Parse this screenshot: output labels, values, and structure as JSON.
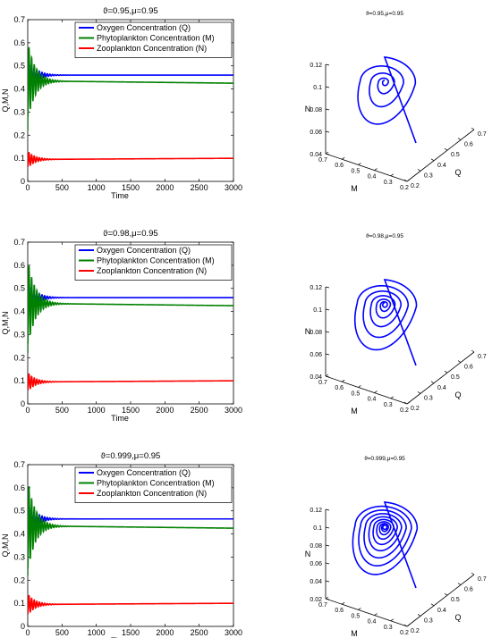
{
  "chart_data": [
    {
      "type": "line",
      "title": "ϑ=0.95,μ=0.95",
      "xlabel": "Time",
      "ylabel": "Q,M,N",
      "xlim": [
        0,
        3000
      ],
      "ylim": [
        0,
        0.7
      ],
      "xticks": [
        "0",
        "500",
        "1000",
        "1500",
        "2000",
        "2500",
        "3000"
      ],
      "yticks": [
        "0",
        "0.1",
        "0.2",
        "0.3",
        "0.4",
        "0.5",
        "0.6",
        "0.7"
      ],
      "legend_position": "top-right",
      "series": [
        {
          "name": "Oxygen Concentration (Q)",
          "color": "#0000ff",
          "start": 0.45,
          "amp": 0.08,
          "final": 0.46,
          "end": 0.46
        },
        {
          "name": "Phytoplankton Concentration (M)",
          "color": "#008000",
          "start": 0.22,
          "amp": 0.17,
          "final": 0.435,
          "end": 0.425
        },
        {
          "name": "Zooplankton Concentration (N)",
          "color": "#ff0000",
          "start": 0.12,
          "amp": 0.035,
          "final": 0.095,
          "end": 0.1
        }
      ]
    },
    {
      "type": "line3d",
      "title": "ϑ=0.95,μ=0.95",
      "xlabel": "M",
      "ylabel": "Q",
      "zlabel": "N",
      "m_ticks": [
        "0.7",
        "0.6",
        "0.5",
        "0.4",
        "0.3",
        "0.2"
      ],
      "q_ticks": [
        "0.2",
        "0.3",
        "0.4",
        "0.5",
        "0.6",
        "0.7"
      ],
      "n_ticks": [
        "0.04",
        "0.06",
        "0.08",
        "0.1",
        "0.12"
      ],
      "color": "#0000ff",
      "spiral_turns": 4
    },
    {
      "type": "line",
      "title": "ϑ=0.98,μ=0.95",
      "xlabel": "Time",
      "ylabel": "Q,M,N",
      "xlim": [
        0,
        3000
      ],
      "ylim": [
        0,
        0.7
      ],
      "xticks": [
        "0",
        "500",
        "1000",
        "1500",
        "2000",
        "2500",
        "3000"
      ],
      "yticks": [
        "0",
        "0.1",
        "0.2",
        "0.3",
        "0.4",
        "0.5",
        "0.6",
        "0.7"
      ],
      "legend_position": "top-right",
      "series": [
        {
          "name": "Oxygen Concentration (Q)",
          "color": "#0000ff",
          "start": 0.45,
          "amp": 0.08,
          "final": 0.46,
          "end": 0.46
        },
        {
          "name": "Phytoplankton Concentration (M)",
          "color": "#008000",
          "start": 0.22,
          "amp": 0.19,
          "final": 0.435,
          "end": 0.425
        },
        {
          "name": "Zooplankton Concentration (N)",
          "color": "#ff0000",
          "start": 0.12,
          "amp": 0.04,
          "final": 0.095,
          "end": 0.1
        }
      ]
    },
    {
      "type": "line3d",
      "title": "ϑ=0.98,μ=0.95",
      "xlabel": "M",
      "ylabel": "Q",
      "zlabel": "N",
      "m_ticks": [
        "0.7",
        "0.6",
        "0.5",
        "0.4",
        "0.3",
        "0.2"
      ],
      "q_ticks": [
        "0.2",
        "0.3",
        "0.4",
        "0.5",
        "0.6",
        "0.7"
      ],
      "n_ticks": [
        "0.04",
        "0.06",
        "0.08",
        "0.1",
        "0.12"
      ],
      "color": "#0000ff",
      "spiral_turns": 6
    },
    {
      "type": "line",
      "title": "ϑ=0.999,μ=0.95",
      "xlabel": "Time",
      "ylabel": "Q,M,N",
      "xlim": [
        0,
        3000
      ],
      "ylim": [
        0,
        0.7
      ],
      "xticks": [
        "0",
        "500",
        "1000",
        "1500",
        "2000",
        "2500",
        "3000"
      ],
      "yticks": [
        "0",
        "0.1",
        "0.2",
        "0.3",
        "0.4",
        "0.5",
        "0.6",
        "0.7"
      ],
      "legend_position": "top-right",
      "series": [
        {
          "name": "Oxygen Concentration (Q)",
          "color": "#0000ff",
          "start": 0.45,
          "amp": 0.085,
          "final": 0.465,
          "end": 0.465
        },
        {
          "name": "Phytoplankton Concentration (M)",
          "color": "#008000",
          "start": 0.22,
          "amp": 0.2,
          "final": 0.435,
          "end": 0.425
        },
        {
          "name": "Zooplankton Concentration (N)",
          "color": "#ff0000",
          "start": 0.12,
          "amp": 0.045,
          "final": 0.095,
          "end": 0.1
        }
      ]
    },
    {
      "type": "line3d",
      "title": "ϑ=0.999,μ=0.95",
      "xlabel": "M",
      "ylabel": "Q",
      "zlabel": "N",
      "m_ticks": [
        "0.7",
        "0.6",
        "0.5",
        "0.4",
        "0.3",
        "0.2"
      ],
      "q_ticks": [
        "0.2",
        "0.3",
        "0.4",
        "0.5",
        "0.6",
        "0.7"
      ],
      "n_ticks": [
        "0.02",
        "0.04",
        "0.06",
        "0.08",
        "0.1",
        "0.12"
      ],
      "color": "#0000ff",
      "spiral_turns": 9
    }
  ]
}
